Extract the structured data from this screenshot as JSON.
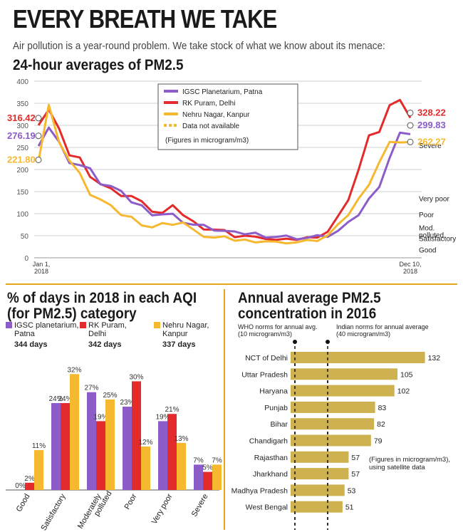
{
  "header": {
    "title": "EVERY BREATH WE TAKE",
    "subtitle": "Air pollution is a year-round problem. We take stock of what we know about its menace:"
  },
  "colors": {
    "purple": "#8c5cc8",
    "red": "#e32b2b",
    "yellow": "#f5b82e",
    "bar_gold": "#cdb24f",
    "divider": "#e7a51a"
  },
  "chart_data": [
    {
      "type": "line",
      "title": "24-hour averages of PM2.5",
      "x_start_label": "Jan 1, 2018",
      "x_end_label": "Dec 10, 2018",
      "yticks": [
        0,
        50,
        100,
        150,
        200,
        250,
        300,
        350,
        400
      ],
      "ylim": [
        0,
        400
      ],
      "grid": true,
      "legend_position": "top-center",
      "legend": [
        "IGSC Planetarium, Patna",
        "RK Puram, Delhi",
        "Nehru Nagar, Kanpur",
        "Data not available"
      ],
      "legend_note": "(Figures in microgram/m3)",
      "aqi_bands": [
        {
          "label": "Severe",
          "from": 250
        },
        {
          "label": "Very poor",
          "from": 120
        },
        {
          "label": "Poor",
          "from": 90
        },
        {
          "label": "Mod. polluted",
          "from": 60
        },
        {
          "label": "Satisfactory",
          "from": 30
        },
        {
          "label": "Good",
          "from": 0
        }
      ],
      "start_values": [
        {
          "series": "RK Puram, Delhi",
          "value": "316.42"
        },
        {
          "series": "IGSC Planetarium, Patna",
          "value": "276.19"
        },
        {
          "series": "Nehru Nagar, Kanpur",
          "value": "221.80"
        }
      ],
      "end_values": [
        {
          "series": "RK Puram, Delhi",
          "value": "328.22"
        },
        {
          "series": "IGSC Planetarium, Patna",
          "value": "299.83"
        },
        {
          "series": "Nehru Nagar, Kanpur",
          "value": "262.27"
        }
      ],
      "series": [
        {
          "name": "IGSC Planetarium, Patna",
          "values": [
            276,
            300,
            250,
            230,
            210,
            190,
            175,
            160,
            140,
            130,
            115,
            105,
            100,
            95,
            85,
            75,
            70,
            65,
            60,
            55,
            55,
            55,
            50,
            48,
            48,
            45,
            45,
            48,
            50,
            60,
            75,
            100,
            130,
            175,
            230,
            270,
            300
          ]
        },
        {
          "name": "RK Puram, Delhi",
          "values": [
            316,
            330,
            270,
            240,
            220,
            200,
            170,
            150,
            150,
            140,
            120,
            110,
            100,
            110,
            100,
            80,
            70,
            65,
            60,
            50,
            50,
            45,
            45,
            40,
            40,
            42,
            45,
            50,
            60,
            90,
            140,
            200,
            260,
            300,
            340,
            330,
            328
          ]
        },
        {
          "name": "Nehru Nagar, Kanpur",
          "values": [
            222,
            330,
            280,
            220,
            180,
            150,
            130,
            110,
            100,
            90,
            80,
            70,
            75,
            80,
            80,
            60,
            50,
            45,
            45,
            40,
            40,
            38,
            38,
            35,
            35,
            35,
            38,
            40,
            50,
            70,
            100,
            130,
            180,
            220,
            250,
            280,
            262
          ]
        }
      ]
    },
    {
      "type": "bar",
      "title": "% of days in 2018 in each AQI (for PM2.5) category",
      "categories": [
        "Good",
        "Satisfactory",
        "Moderately polluted",
        "Poor",
        "Very poor",
        "Severe"
      ],
      "series": [
        {
          "name": "IGSC planetarium, Patna",
          "days": "344 days",
          "values": [
            0,
            24,
            27,
            23,
            19,
            7
          ]
        },
        {
          "name": "RK Puram, Delhi",
          "days": "342 days",
          "values": [
            2,
            24,
            19,
            30,
            21,
            5
          ]
        },
        {
          "name": "Nehru Nagar, Kanpur",
          "days": "337 days",
          "values": [
            11,
            32,
            25,
            12,
            13,
            7
          ]
        }
      ],
      "value_labels": [
        [
          "0%",
          "24%",
          "27%",
          "23%",
          "19%",
          "7%"
        ],
        [
          "2%",
          "24%",
          "19%",
          "30%",
          "21%",
          "5%"
        ],
        [
          "11%",
          "32%",
          "25%",
          "12%",
          "13%",
          "7%"
        ]
      ],
      "ylim": [
        0,
        35
      ],
      "grid": false,
      "legend_position": "top"
    },
    {
      "type": "bar",
      "orientation": "horizontal",
      "title": "Annual average PM2.5 concentration in 2016",
      "categories": [
        "NCT of Delhi",
        "Uttar Pradesh",
        "Haryana",
        "Punjab",
        "Bihar",
        "Chandigarh",
        "Rajasthan",
        "Jharkhand",
        "Madhya Pradesh",
        "West Bengal"
      ],
      "values": [
        132,
        105,
        102,
        83,
        82,
        79,
        57,
        57,
        53,
        51
      ],
      "xlim": [
        0,
        140
      ],
      "reference_lines": [
        {
          "label": "WHO norms for annual avg. (10 microgram/m3)",
          "value": 10
        },
        {
          "label": "Indian norms for annual average (40 microgram/m3)",
          "value": 40
        }
      ],
      "note": "(Figures in microgram/m3), using satellite data"
    }
  ]
}
